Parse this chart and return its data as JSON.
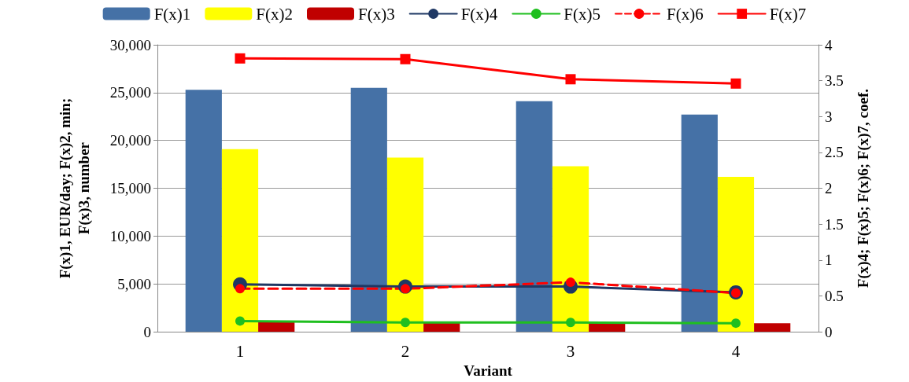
{
  "chart_data": {
    "type": "bar",
    "categories": [
      "1",
      "2",
      "3",
      "4"
    ],
    "xlabel": "Variant",
    "ylabel": "F(x)1, EUR/day; F(x)2, min;\nF(x)3, number",
    "y2label": "F(x)4; F(x)5; F(x)6; F(x)7, coef.",
    "ylim": [
      0,
      30000
    ],
    "yticks": [
      {
        "value": 0,
        "label": "0"
      },
      {
        "value": 5000,
        "label": "5,000"
      },
      {
        "value": 10000,
        "label": "10,000"
      },
      {
        "value": 15000,
        "label": "15,000"
      },
      {
        "value": 20000,
        "label": "20,000"
      },
      {
        "value": 25000,
        "label": "25,000"
      },
      {
        "value": 30000,
        "label": "30,000"
      }
    ],
    "y2lim": [
      0,
      4
    ],
    "y2ticks": [
      0,
      0.5,
      1,
      1.5,
      2,
      2.5,
      3,
      3.5,
      4
    ],
    "grid": "y",
    "legend": "top",
    "series": [
      {
        "name": "F(x)1",
        "color": "#4571a6",
        "values": [
          25300,
          25500,
          24100,
          22700
        ]
      },
      {
        "name": "F(x)2",
        "color": "#ffff00",
        "values": [
          19100,
          18200,
          17300,
          16200
        ]
      },
      {
        "name": "F(x)3",
        "color": "#c00000",
        "values": [
          1000,
          1000,
          1000,
          900
        ]
      },
      {
        "name": "F(x)4",
        "type": "line",
        "axis": "y2",
        "color": "#1f3864",
        "marker": "circle",
        "line_style": "solid",
        "values": [
          0.66,
          0.63,
          0.63,
          0.55
        ]
      },
      {
        "name": "F(x)5",
        "type": "line",
        "axis": "y2",
        "color": "#1fbf1f",
        "marker": "circle",
        "line_style": "solid",
        "values": [
          0.15,
          0.13,
          0.13,
          0.12
        ]
      },
      {
        "name": "F(x)6",
        "type": "line",
        "axis": "y2",
        "color": "#ff0000",
        "marker": "circle",
        "line_style": "dashed",
        "values": [
          0.6,
          0.6,
          0.69,
          0.54
        ]
      },
      {
        "name": "F(x)7",
        "type": "line",
        "axis": "y2",
        "color": "#ff0000",
        "marker": "square",
        "line_style": "solid",
        "values": [
          3.81,
          3.8,
          3.52,
          3.46
        ]
      }
    ]
  }
}
